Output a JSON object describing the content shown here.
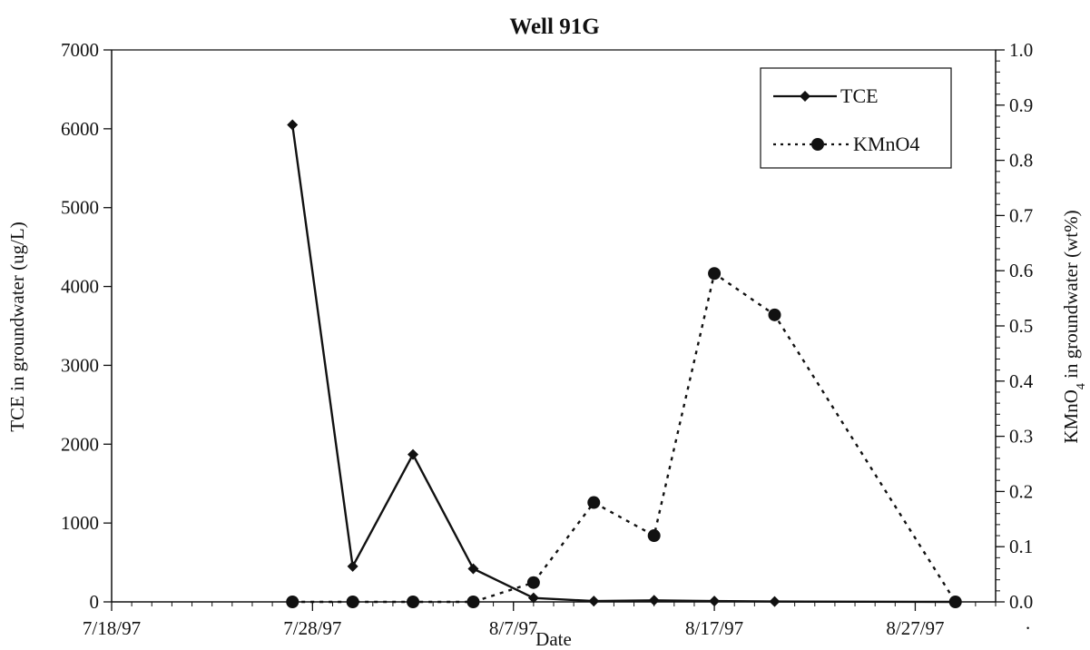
{
  "chart_data": {
    "type": "line",
    "title": "Well 91G",
    "xlabel": "Date",
    "ylabel_left": "TCE in groundwater (ug/L)",
    "ylabel_right_main": "KMnO",
    "ylabel_right_sub": "4",
    "ylabel_right_rest": " in groundwater (wt%)",
    "x_range": [
      "7/18/97",
      "8/31/97"
    ],
    "x_ticks": [
      "7/18/97",
      "7/28/97",
      "8/7/97",
      "8/17/97",
      "8/27/97"
    ],
    "y_left_range": [
      0,
      7000
    ],
    "y_left_ticks": [
      "0",
      "1000",
      "2000",
      "3000",
      "4000",
      "5000",
      "6000",
      "7000"
    ],
    "y_right_range": [
      0,
      1.0
    ],
    "y_right_ticks": [
      "0.0",
      "0.1",
      "0.2",
      "0.3",
      "0.4",
      "0.5",
      "0.6",
      "0.7",
      "0.8",
      "0.9",
      "1.0"
    ],
    "grid": false,
    "legend_position": "top-right",
    "series": [
      {
        "name": "TCE",
        "axis": "left",
        "style": "solid",
        "marker": "diamond",
        "color": "#111111",
        "points": [
          [
            "7/27/97",
            6050
          ],
          [
            "7/30/97",
            450
          ],
          [
            "8/2/97",
            1870
          ],
          [
            "8/5/97",
            420
          ],
          [
            "8/8/97",
            50
          ],
          [
            "8/11/97",
            10
          ],
          [
            "8/14/97",
            20
          ],
          [
            "8/17/97",
            10
          ],
          [
            "8/20/97",
            5
          ],
          [
            "8/29/97",
            0
          ]
        ]
      },
      {
        "name": "KMnO4",
        "axis": "right",
        "style": "dotted",
        "marker": "circle",
        "color": "#111111",
        "points": [
          [
            "7/27/97",
            0.0
          ],
          [
            "7/30/97",
            0.0
          ],
          [
            "8/2/97",
            0.0
          ],
          [
            "8/5/97",
            0.0
          ],
          [
            "8/8/97",
            0.035
          ],
          [
            "8/11/97",
            0.18
          ],
          [
            "8/14/97",
            0.12
          ],
          [
            "8/17/97",
            0.595
          ],
          [
            "8/20/97",
            0.52
          ],
          [
            "8/29/97",
            0.0
          ]
        ]
      }
    ],
    "stray_mark": "."
  }
}
